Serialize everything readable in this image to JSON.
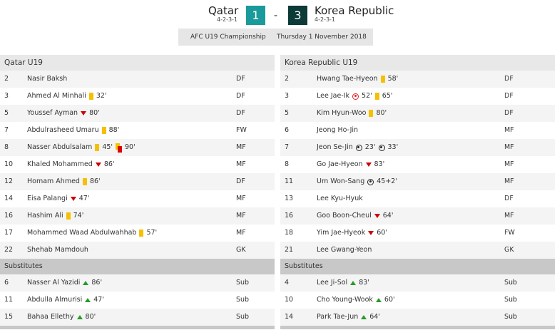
{
  "match": {
    "home": "Qatar",
    "home_formation": "4-2-3-1",
    "home_score": "1",
    "separator": "-",
    "away_score": "3",
    "away": "Korea Republic",
    "away_formation": "4-2-3-1",
    "competition": "AFC U19 Championship",
    "date": "Thursday 1 November 2018"
  },
  "colors": {
    "home_score_bg": "#1a9a9a",
    "away_score_bg": "#0c3a37"
  },
  "home": {
    "title": "Qatar U19",
    "subs_title": "Substitutes",
    "starters": [
      {
        "num": "2",
        "name": "Nasir Baksh",
        "pos": "DF",
        "events": []
      },
      {
        "num": "3",
        "name": "Ahmed Al Minhali",
        "pos": "DF",
        "events": [
          {
            "type": "yellow-card",
            "min": "32'"
          }
        ]
      },
      {
        "num": "5",
        "name": "Youssef Ayman",
        "pos": "DF",
        "events": [
          {
            "type": "sub-off",
            "min": "80'"
          }
        ]
      },
      {
        "num": "7",
        "name": "Abdulrasheed Umaru",
        "pos": "FW",
        "events": [
          {
            "type": "yellow-card",
            "min": "88'"
          }
        ]
      },
      {
        "num": "8",
        "name": "Nasser Abdulsalam",
        "pos": "MF",
        "events": [
          {
            "type": "yellow-card",
            "min": "45'"
          },
          {
            "type": "second-yellow-red-card",
            "min": "90'"
          }
        ]
      },
      {
        "num": "10",
        "name": "Khaled Mohammed",
        "pos": "MF",
        "events": [
          {
            "type": "sub-off",
            "min": "86'"
          }
        ]
      },
      {
        "num": "12",
        "name": "Homam Ahmed",
        "pos": "DF",
        "events": [
          {
            "type": "yellow-card",
            "min": "86'"
          }
        ]
      },
      {
        "num": "14",
        "name": "Eisa Palangi",
        "pos": "MF",
        "events": [
          {
            "type": "sub-off",
            "min": "47'"
          }
        ]
      },
      {
        "num": "16",
        "name": "Hashim Ali",
        "pos": "MF",
        "events": [
          {
            "type": "yellow-card",
            "min": "74'"
          }
        ]
      },
      {
        "num": "17",
        "name": "Mohammed Waad Abdulwahhab",
        "pos": "MF",
        "events": [
          {
            "type": "yellow-card",
            "min": "57'"
          }
        ]
      },
      {
        "num": "22",
        "name": "Shehab Mamdouh",
        "pos": "GK",
        "events": []
      }
    ],
    "subs": [
      {
        "num": "6",
        "name": "Nasser Al Yazidi",
        "pos": "Sub",
        "events": [
          {
            "type": "sub-on",
            "min": "86'"
          }
        ]
      },
      {
        "num": "11",
        "name": "Abdulla Almurisi",
        "pos": "Sub",
        "events": [
          {
            "type": "sub-on",
            "min": "47'"
          }
        ]
      },
      {
        "num": "15",
        "name": "Bahaa Ellethy",
        "pos": "Sub",
        "events": [
          {
            "type": "sub-on",
            "min": "80'"
          }
        ]
      }
    ]
  },
  "away": {
    "title": "Korea Republic U19",
    "subs_title": "Substitutes",
    "starters": [
      {
        "num": "2",
        "name": "Hwang Tae-Hyeon",
        "pos": "DF",
        "events": [
          {
            "type": "yellow-card",
            "min": "58'"
          }
        ]
      },
      {
        "num": "3",
        "name": "Lee Jae-Ik",
        "pos": "DF",
        "events": [
          {
            "type": "own-goal",
            "min": "52'"
          },
          {
            "type": "yellow-card",
            "min": "65'"
          }
        ]
      },
      {
        "num": "5",
        "name": "Kim Hyun-Woo",
        "pos": "DF",
        "events": [
          {
            "type": "yellow-card",
            "min": "80'"
          }
        ]
      },
      {
        "num": "6",
        "name": "Jeong Ho-Jin",
        "pos": "MF",
        "events": []
      },
      {
        "num": "7",
        "name": "Jeon Se-Jin",
        "pos": "MF",
        "events": [
          {
            "type": "goal",
            "min": "23'"
          },
          {
            "type": "goal",
            "min": "33'"
          }
        ]
      },
      {
        "num": "8",
        "name": "Go Jae-Hyeon",
        "pos": "MF",
        "events": [
          {
            "type": "sub-off",
            "min": "83'"
          }
        ]
      },
      {
        "num": "11",
        "name": "Um Won-Sang",
        "pos": "MF",
        "events": [
          {
            "type": "goal",
            "min": "45+2'"
          }
        ]
      },
      {
        "num": "13",
        "name": "Lee Kyu-Hyuk",
        "pos": "DF",
        "events": []
      },
      {
        "num": "16",
        "name": "Goo Boon-Cheul",
        "pos": "MF",
        "events": [
          {
            "type": "sub-off",
            "min": "64'"
          }
        ]
      },
      {
        "num": "18",
        "name": "Yim Jae-Hyeok",
        "pos": "FW",
        "events": [
          {
            "type": "sub-off",
            "min": "60'"
          }
        ]
      },
      {
        "num": "21",
        "name": "Lee Gwang-Yeon",
        "pos": "GK",
        "events": []
      }
    ],
    "subs": [
      {
        "num": "4",
        "name": "Lee Ji-Sol",
        "pos": "Sub",
        "events": [
          {
            "type": "sub-on",
            "min": "83'"
          }
        ]
      },
      {
        "num": "10",
        "name": "Cho Young-Wook",
        "pos": "Sub",
        "events": [
          {
            "type": "sub-on",
            "min": "60'"
          }
        ]
      },
      {
        "num": "14",
        "name": "Park Tae-Jun",
        "pos": "Sub",
        "events": [
          {
            "type": "sub-on",
            "min": "64'"
          }
        ]
      }
    ]
  }
}
